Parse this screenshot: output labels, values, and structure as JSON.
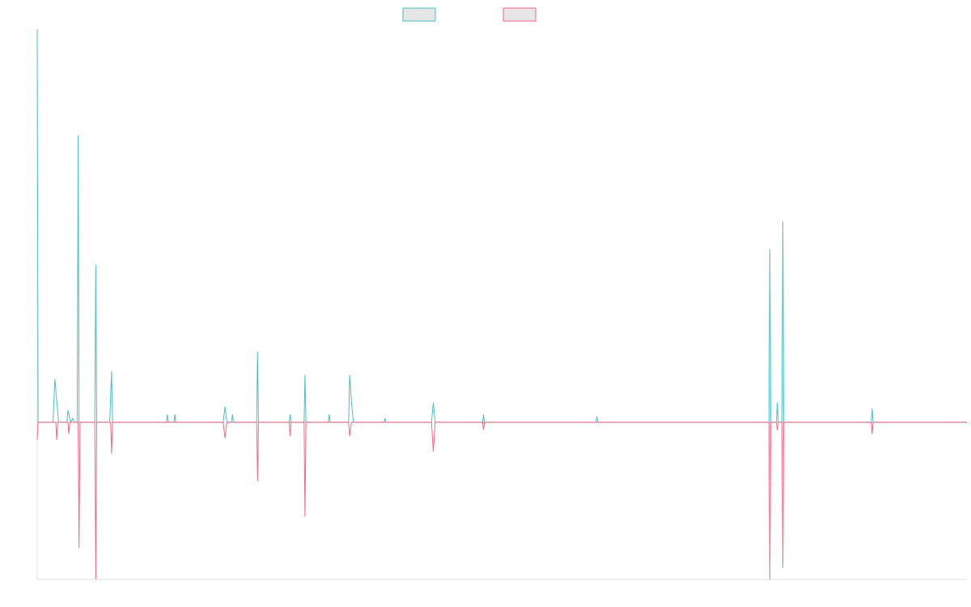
{
  "chart_data": {
    "type": "line",
    "title": "",
    "xlabel": "",
    "ylabel": "",
    "grid": false,
    "legend_position": "top-center",
    "x_range": [
      0,
      1000
    ],
    "ylim": [
      -40,
      100
    ],
    "series": [
      {
        "color": "#4bc0c0",
        "fill": "#e6e6e6",
        "points": [
          [
            0,
            100
          ],
          [
            1,
            0
          ],
          [
            17,
            0
          ],
          [
            19,
            11
          ],
          [
            23,
            0
          ],
          [
            32,
            0
          ],
          [
            33,
            3
          ],
          [
            36,
            0
          ],
          [
            38,
            1
          ],
          [
            40,
            0
          ],
          [
            43,
            0
          ],
          [
            44,
            73
          ],
          [
            45,
            0
          ],
          [
            62,
            0
          ],
          [
            63,
            40
          ],
          [
            64,
            0
          ],
          [
            78,
            0
          ],
          [
            80,
            13
          ],
          [
            81,
            0
          ],
          [
            139,
            0
          ],
          [
            140,
            2
          ],
          [
            141,
            0
          ],
          [
            147,
            0
          ],
          [
            148,
            2
          ],
          [
            149,
            0
          ],
          [
            200,
            0
          ],
          [
            202,
            4
          ],
          [
            204,
            0
          ],
          [
            209,
            0
          ],
          [
            210,
            2
          ],
          [
            211,
            0
          ],
          [
            236,
            0
          ],
          [
            237,
            18
          ],
          [
            238,
            0
          ],
          [
            271,
            0
          ],
          [
            272,
            2
          ],
          [
            273,
            0
          ],
          [
            287,
            0
          ],
          [
            288,
            12
          ],
          [
            289,
            0
          ],
          [
            313,
            0
          ],
          [
            314,
            2
          ],
          [
            315,
            0
          ],
          [
            335,
            0
          ],
          [
            336,
            12
          ],
          [
            338,
            5
          ],
          [
            340,
            0
          ],
          [
            373,
            0
          ],
          [
            374,
            1
          ],
          [
            375,
            0
          ],
          [
            424,
            0
          ],
          [
            426,
            5
          ],
          [
            428,
            0
          ],
          [
            479,
            0
          ],
          [
            480,
            2
          ],
          [
            481,
            0
          ],
          [
            601,
            0
          ],
          [
            602,
            1.5
          ],
          [
            603,
            0
          ],
          [
            787,
            0
          ],
          [
            788,
            44
          ],
          [
            789,
            0
          ],
          [
            795,
            0
          ],
          [
            796,
            5
          ],
          [
            797,
            0
          ],
          [
            801,
            0
          ],
          [
            802,
            51
          ],
          [
            803,
            0
          ],
          [
            897,
            0
          ],
          [
            898,
            3.5
          ],
          [
            899,
            0
          ],
          [
            1000,
            0
          ]
        ]
      },
      {
        "color": "#ff6384",
        "fill": "#e6e6e6",
        "points": [
          [
            0,
            -4.5
          ],
          [
            1,
            0
          ],
          [
            20,
            0
          ],
          [
            21,
            -4.5
          ],
          [
            22,
            0
          ],
          [
            33,
            0
          ],
          [
            34,
            -3
          ],
          [
            35,
            0
          ],
          [
            44,
            0
          ],
          [
            45,
            -32
          ],
          [
            46,
            0
          ],
          [
            62,
            0
          ],
          [
            63,
            -40
          ],
          [
            64,
            0
          ],
          [
            79,
            0
          ],
          [
            80,
            -8
          ],
          [
            81,
            0
          ],
          [
            200,
            0
          ],
          [
            202,
            -4
          ],
          [
            204,
            0
          ],
          [
            236,
            0
          ],
          [
            237,
            -15
          ],
          [
            238,
            0
          ],
          [
            271,
            0
          ],
          [
            272,
            -3.5
          ],
          [
            273,
            0
          ],
          [
            287,
            0
          ],
          [
            288,
            -24
          ],
          [
            289,
            0
          ],
          [
            335,
            0
          ],
          [
            336,
            -3.5
          ],
          [
            338,
            0
          ],
          [
            424,
            0
          ],
          [
            426,
            -7.5
          ],
          [
            428,
            0
          ],
          [
            479,
            0
          ],
          [
            480,
            -2
          ],
          [
            481,
            0
          ],
          [
            787,
            0
          ],
          [
            788,
            -40
          ],
          [
            789,
            0
          ],
          [
            795,
            0
          ],
          [
            796,
            -2
          ],
          [
            797,
            0
          ],
          [
            801,
            0
          ],
          [
            802,
            -37
          ],
          [
            803,
            0
          ],
          [
            897,
            0
          ],
          [
            898,
            -3
          ],
          [
            899,
            0
          ],
          [
            1000,
            0
          ]
        ]
      }
    ]
  }
}
